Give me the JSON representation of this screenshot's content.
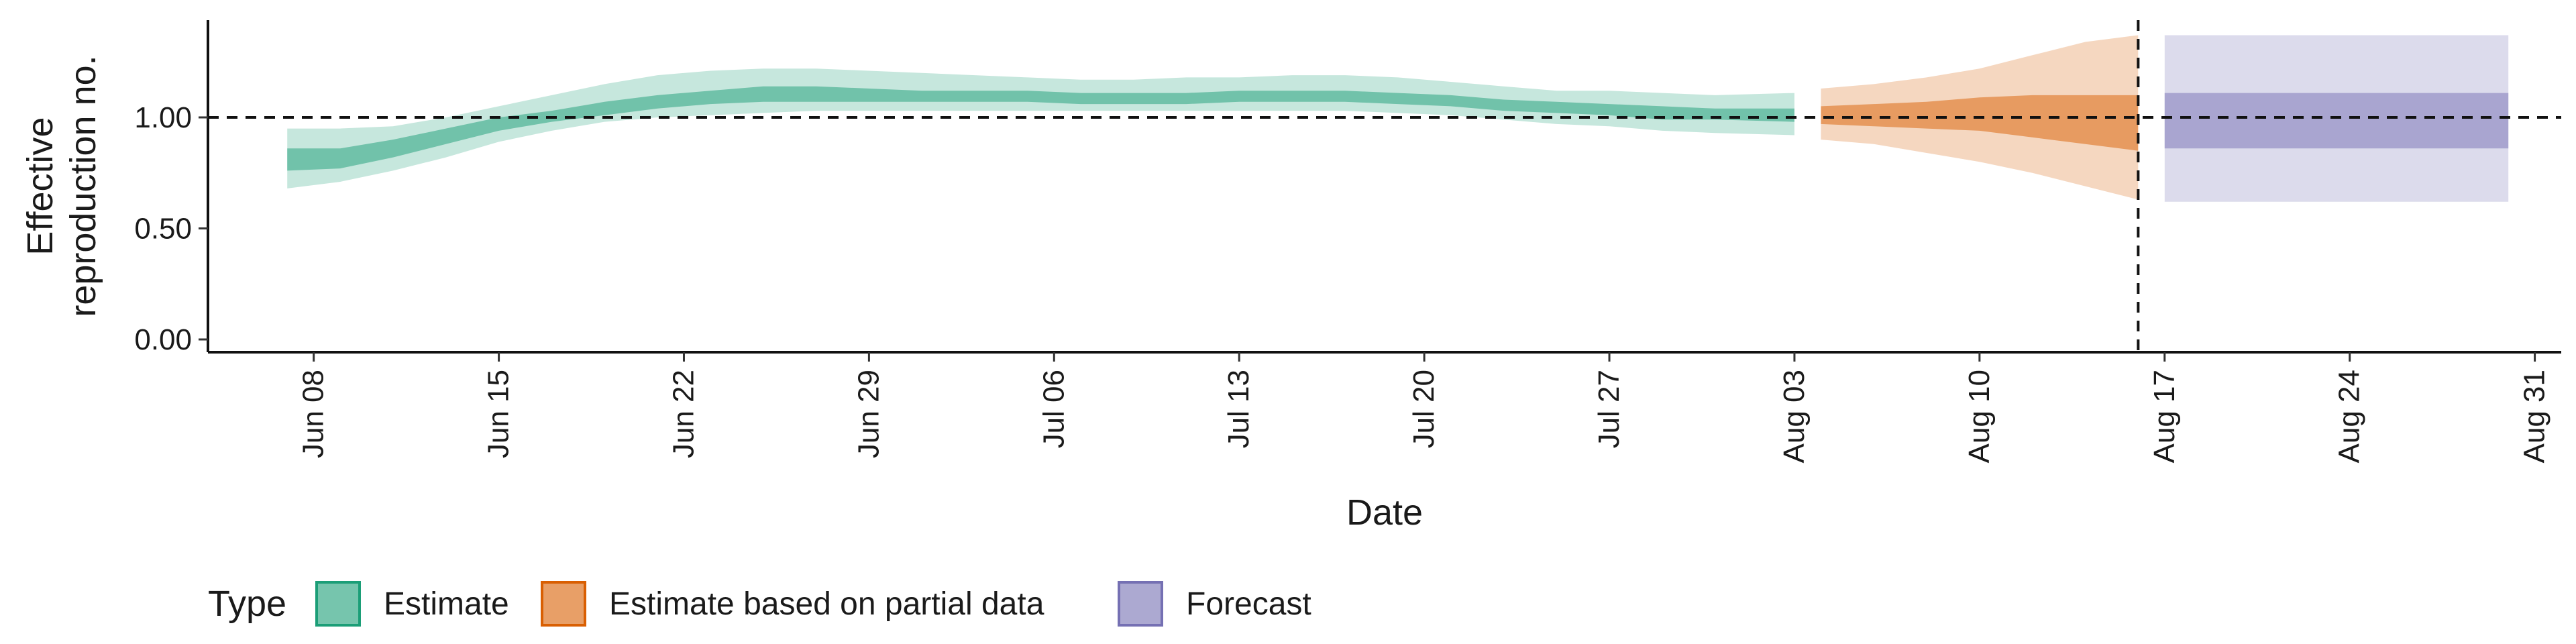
{
  "chart_data": {
    "type": "area",
    "ylabel": [
      "Effective",
      "reproduction no."
    ],
    "xlabel": "Date",
    "ylim": [
      0,
      1.45
    ],
    "y_ticks": [
      {
        "value": 0,
        "label": "0.00"
      },
      {
        "value": 0.5,
        "label": "0.50"
      },
      {
        "value": 1.0,
        "label": "1.00"
      }
    ],
    "x_range": [
      "2020-06-04",
      "2020-09-01"
    ],
    "x_ticks": [
      {
        "date": "2020-06-08",
        "label": "Jun 08"
      },
      {
        "date": "2020-06-15",
        "label": "Jun 15"
      },
      {
        "date": "2020-06-22",
        "label": "Jun 22"
      },
      {
        "date": "2020-06-29",
        "label": "Jun 29"
      },
      {
        "date": "2020-07-06",
        "label": "Jul 06"
      },
      {
        "date": "2020-07-13",
        "label": "Jul 13"
      },
      {
        "date": "2020-07-20",
        "label": "Jul 20"
      },
      {
        "date": "2020-07-27",
        "label": "Jul 27"
      },
      {
        "date": "2020-08-03",
        "label": "Aug 03"
      },
      {
        "date": "2020-08-10",
        "label": "Aug 10"
      },
      {
        "date": "2020-08-17",
        "label": "Aug 17"
      },
      {
        "date": "2020-08-24",
        "label": "Aug 24"
      },
      {
        "date": "2020-08-31",
        "label": "Aug 31"
      }
    ],
    "reference_hline": 1.0,
    "reference_vline": "2020-08-16",
    "grid": false,
    "legend_position": "bottom-left",
    "legend_title": "Type",
    "series": [
      {
        "name": "Estimate",
        "fill": "#1b9e77",
        "stroke": "#1b9e77",
        "points": [
          {
            "date": "2020-06-07",
            "lower90": 0.68,
            "lower50": 0.76,
            "upper50": 0.86,
            "upper90": 0.95
          },
          {
            "date": "2020-06-09",
            "lower90": 0.71,
            "lower50": 0.77,
            "upper50": 0.86,
            "upper90": 0.95
          },
          {
            "date": "2020-06-11",
            "lower90": 0.76,
            "lower50": 0.82,
            "upper50": 0.9,
            "upper90": 0.96
          },
          {
            "date": "2020-06-13",
            "lower90": 0.82,
            "lower50": 0.88,
            "upper50": 0.95,
            "upper90": 1.0
          },
          {
            "date": "2020-06-15",
            "lower90": 0.89,
            "lower50": 0.94,
            "upper50": 1.0,
            "upper90": 1.05
          },
          {
            "date": "2020-06-17",
            "lower90": 0.94,
            "lower50": 0.98,
            "upper50": 1.03,
            "upper90": 1.1
          },
          {
            "date": "2020-06-19",
            "lower90": 0.98,
            "lower50": 1.01,
            "upper50": 1.07,
            "upper90": 1.15
          },
          {
            "date": "2020-06-21",
            "lower90": 1.0,
            "lower50": 1.04,
            "upper50": 1.1,
            "upper90": 1.19
          },
          {
            "date": "2020-06-23",
            "lower90": 1.01,
            "lower50": 1.06,
            "upper50": 1.12,
            "upper90": 1.21
          },
          {
            "date": "2020-06-25",
            "lower90": 1.02,
            "lower50": 1.07,
            "upper50": 1.14,
            "upper90": 1.22
          },
          {
            "date": "2020-06-27",
            "lower90": 1.03,
            "lower50": 1.07,
            "upper50": 1.14,
            "upper90": 1.22
          },
          {
            "date": "2020-06-29",
            "lower90": 1.03,
            "lower50": 1.07,
            "upper50": 1.13,
            "upper90": 1.21
          },
          {
            "date": "2020-07-01",
            "lower90": 1.03,
            "lower50": 1.07,
            "upper50": 1.12,
            "upper90": 1.2
          },
          {
            "date": "2020-07-03",
            "lower90": 1.03,
            "lower50": 1.07,
            "upper50": 1.12,
            "upper90": 1.19
          },
          {
            "date": "2020-07-05",
            "lower90": 1.03,
            "lower50": 1.07,
            "upper50": 1.12,
            "upper90": 1.18
          },
          {
            "date": "2020-07-07",
            "lower90": 1.03,
            "lower50": 1.06,
            "upper50": 1.11,
            "upper90": 1.17
          },
          {
            "date": "2020-07-09",
            "lower90": 1.03,
            "lower50": 1.06,
            "upper50": 1.11,
            "upper90": 1.17
          },
          {
            "date": "2020-07-11",
            "lower90": 1.03,
            "lower50": 1.06,
            "upper50": 1.11,
            "upper90": 1.18
          },
          {
            "date": "2020-07-13",
            "lower90": 1.03,
            "lower50": 1.07,
            "upper50": 1.12,
            "upper90": 1.18
          },
          {
            "date": "2020-07-15",
            "lower90": 1.03,
            "lower50": 1.07,
            "upper50": 1.12,
            "upper90": 1.19
          },
          {
            "date": "2020-07-17",
            "lower90": 1.03,
            "lower50": 1.07,
            "upper50": 1.12,
            "upper90": 1.19
          },
          {
            "date": "2020-07-19",
            "lower90": 1.02,
            "lower50": 1.06,
            "upper50": 1.11,
            "upper90": 1.18
          },
          {
            "date": "2020-07-21",
            "lower90": 1.01,
            "lower50": 1.05,
            "upper50": 1.1,
            "upper90": 1.16
          },
          {
            "date": "2020-07-23",
            "lower90": 0.99,
            "lower50": 1.03,
            "upper50": 1.08,
            "upper90": 1.14
          },
          {
            "date": "2020-07-25",
            "lower90": 0.97,
            "lower50": 1.02,
            "upper50": 1.07,
            "upper90": 1.12
          },
          {
            "date": "2020-07-27",
            "lower90": 0.96,
            "lower50": 1.01,
            "upper50": 1.06,
            "upper90": 1.12
          },
          {
            "date": "2020-07-29",
            "lower90": 0.94,
            "lower50": 0.99,
            "upper50": 1.05,
            "upper90": 1.11
          },
          {
            "date": "2020-07-31",
            "lower90": 0.93,
            "lower50": 0.99,
            "upper50": 1.04,
            "upper90": 1.1
          },
          {
            "date": "2020-08-03",
            "lower90": 0.92,
            "lower50": 0.98,
            "upper50": 1.04,
            "upper90": 1.11
          }
        ]
      },
      {
        "name": "Estimate based on partial data",
        "fill": "#d95f02",
        "stroke": "#d95f02",
        "points": [
          {
            "date": "2020-08-04",
            "lower90": 0.9,
            "lower50": 0.97,
            "upper50": 1.05,
            "upper90": 1.13
          },
          {
            "date": "2020-08-06",
            "lower90": 0.88,
            "lower50": 0.96,
            "upper50": 1.06,
            "upper90": 1.15
          },
          {
            "date": "2020-08-08",
            "lower90": 0.84,
            "lower50": 0.95,
            "upper50": 1.07,
            "upper90": 1.18
          },
          {
            "date": "2020-08-10",
            "lower90": 0.8,
            "lower50": 0.94,
            "upper50": 1.09,
            "upper90": 1.22
          },
          {
            "date": "2020-08-12",
            "lower90": 0.75,
            "lower50": 0.91,
            "upper50": 1.1,
            "upper90": 1.28
          },
          {
            "date": "2020-08-14",
            "lower90": 0.69,
            "lower50": 0.88,
            "upper50": 1.1,
            "upper90": 1.34
          },
          {
            "date": "2020-08-16",
            "lower90": 0.63,
            "lower50": 0.85,
            "upper50": 1.1,
            "upper90": 1.37
          }
        ]
      },
      {
        "name": "Forecast",
        "fill": "#7570b3",
        "stroke": "#7570b3",
        "points": [
          {
            "date": "2020-08-17",
            "lower90": 0.62,
            "lower50": 0.86,
            "upper50": 1.11,
            "upper90": 1.37
          },
          {
            "date": "2020-08-30",
            "lower90": 0.62,
            "lower50": 0.86,
            "upper50": 1.11,
            "upper90": 1.37
          }
        ]
      }
    ]
  }
}
